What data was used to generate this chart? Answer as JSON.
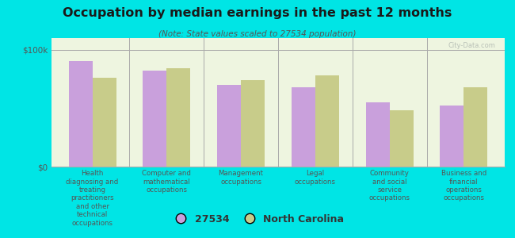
{
  "title": "Occupation by median earnings in the past 12 months",
  "subtitle": "(Note: State values scaled to 27534 population)",
  "categories": [
    "Health\ndiagnosing and\ntreating\npractitioners\nand other\ntechnical\noccupations",
    "Computer and\nmathematical\noccupations",
    "Management\noccupations",
    "Legal\noccupations",
    "Community\nand social\nservice\noccupations",
    "Business and\nfinancial\noperations\noccupations"
  ],
  "values_27534": [
    90000,
    82000,
    70000,
    68000,
    55000,
    52000
  ],
  "values_nc": [
    76000,
    84000,
    74000,
    78000,
    48000,
    68000
  ],
  "color_27534": "#c9a0dc",
  "color_nc": "#c8cc8a",
  "plot_bg": "#eef5e0",
  "background": "#00e5e5",
  "ylabel_ticks": [
    "$0",
    "$100k"
  ],
  "ytick_vals": [
    0,
    100000
  ],
  "ylim": [
    0,
    110000
  ],
  "legend_label_27534": "27534",
  "legend_label_nc": "North Carolina",
  "watermark": "City-Data.com"
}
